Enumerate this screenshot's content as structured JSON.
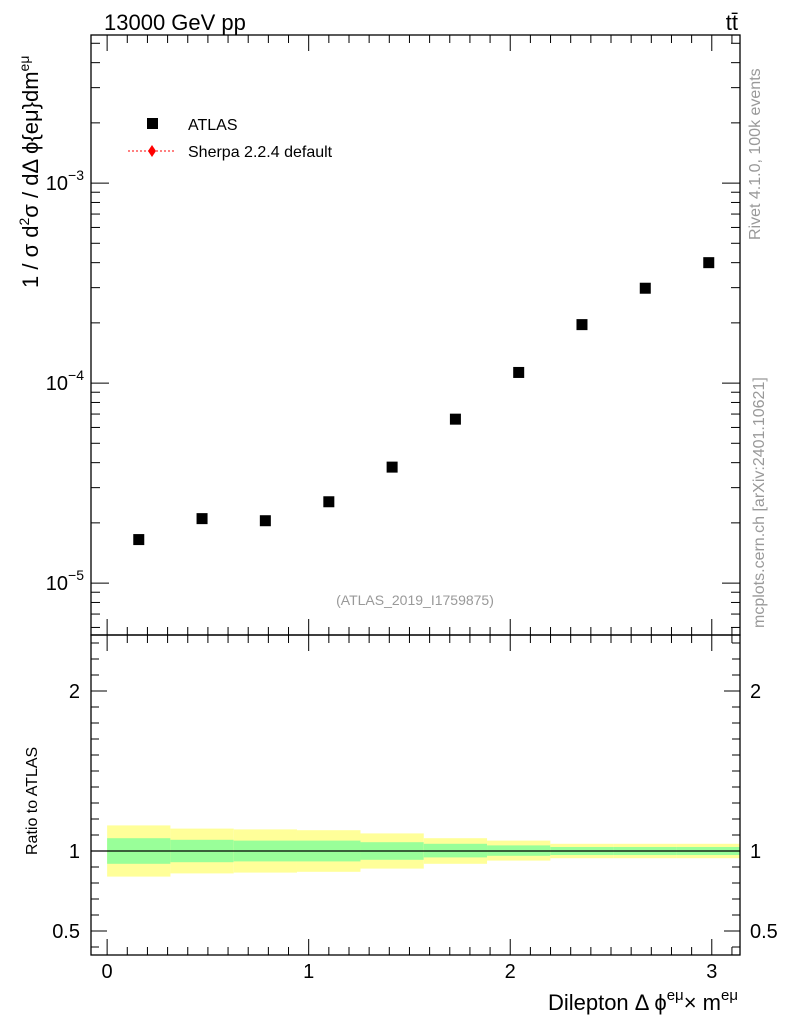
{
  "header": {
    "energy_label": "13000 GeV pp",
    "process_label": "tt̄"
  },
  "side_labels": {
    "rivet": "Rivet 4.1.0,  100k events",
    "mcplots": "mcplots.cern.ch [arXiv:2401.10621]"
  },
  "colors": {
    "data_marker": "#000000",
    "mc_line": "#ff0000",
    "band_inner": "#99ff99",
    "band_outer": "#ffff99",
    "watermark": "#999999"
  },
  "chart_data": [
    {
      "type": "scatter",
      "panel": "main",
      "title": "",
      "analysis_id": "(ATLAS_2019_I1759875)",
      "ylabel_parts": {
        "pre": "1 / σ  d",
        "sup2": "2",
        "mid": "σ / dΔ ϕ{eμ}dm",
        "sup": "eμ"
      },
      "ylabel_text": "1 / σ  d2σ / dΔ ϕ{eμ}dm eμ",
      "yscale": "log",
      "ylim": [
        5.5e-06,
        0.0055
      ],
      "xlim": [
        -0.08,
        3.14
      ],
      "y_tick_labels": [
        {
          "value": 1e-05,
          "base": "10",
          "exp": "−5"
        },
        {
          "value": 0.0001,
          "base": "10",
          "exp": "−4"
        },
        {
          "value": 0.001,
          "base": "10",
          "exp": "−3"
        }
      ],
      "legend": [
        {
          "label": "ATLAS",
          "marker": "square"
        },
        {
          "label": "Sherpa 2.2.4 default",
          "marker": "diamond-dotted-line"
        }
      ],
      "series": [
        {
          "name": "ATLAS",
          "x": [
            0.157,
            0.471,
            0.785,
            1.1,
            1.414,
            1.728,
            2.042,
            2.356,
            2.67,
            2.985
          ],
          "values": [
            1.65e-05,
            2.1e-05,
            2.05e-05,
            2.55e-05,
            3.8e-05,
            6.6e-05,
            0.000113,
            0.000196,
            0.000298,
            0.0004
          ]
        }
      ]
    },
    {
      "type": "area",
      "panel": "ratio",
      "ylabel": "Ratio to ATLAS",
      "xlabel_parts": {
        "pre": "Dilepton Δ ϕ",
        "sup1": "eμ",
        "mid": "× m",
        "sup2": "eμ"
      },
      "xlabel_text": "Dilepton Δ ϕ eμ × m eμ",
      "ylim": [
        0.35,
        2.35
      ],
      "xlim": [
        -0.08,
        3.14
      ],
      "x_ticks": [
        0,
        1,
        2,
        3
      ],
      "x_tick_labels": [
        "0",
        "1",
        "2",
        "3"
      ],
      "y_ticks": [
        0.5,
        1,
        2
      ],
      "y_tick_labels": [
        "0.5",
        "1",
        "2"
      ],
      "reference_line": 1,
      "bins": [
        0,
        0.314,
        0.628,
        0.942,
        1.257,
        1.571,
        1.885,
        2.199,
        2.513,
        2.827,
        3.142
      ],
      "inner_band": {
        "low": [
          0.92,
          0.93,
          0.935,
          0.935,
          0.945,
          0.96,
          0.97,
          0.975,
          0.975,
          0.975
        ],
        "high": [
          1.08,
          1.07,
          1.065,
          1.065,
          1.055,
          1.045,
          1.035,
          1.025,
          1.025,
          1.025
        ]
      },
      "outer_band": {
        "low": [
          0.84,
          0.86,
          0.865,
          0.87,
          0.89,
          0.92,
          0.94,
          0.955,
          0.955,
          0.955
        ],
        "high": [
          1.16,
          1.14,
          1.135,
          1.13,
          1.11,
          1.08,
          1.065,
          1.045,
          1.045,
          1.045
        ]
      }
    }
  ]
}
